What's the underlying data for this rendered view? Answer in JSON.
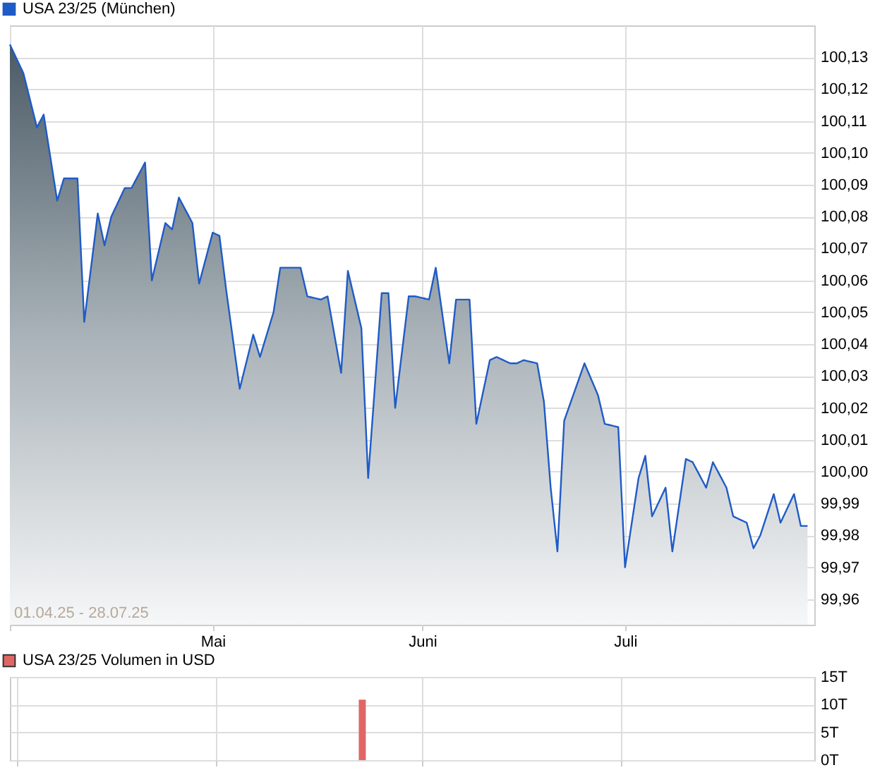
{
  "chart_data": [
    {
      "type": "area",
      "legend": "top left",
      "grid": true,
      "marker": "none",
      "annotations": [
        "01.04.25 - 28.07.25"
      ],
      "x": [
        "--04-01",
        "--04-03",
        "--04-05",
        "--04-06",
        "--04-08",
        "--04-09",
        "--04-11",
        "--04-12",
        "--04-14",
        "--04-15",
        "--04-16",
        "--04-18",
        "--04-19",
        "--04-21",
        "--04-22",
        "--04-24",
        "--04-25",
        "--04-26",
        "--04-28",
        "--04-29",
        "--05-01",
        "--05-02",
        "--05-03",
        "--05-05",
        "--05-07",
        "--05-08",
        "--05-10",
        "--05-11",
        "--05-12",
        "--05-14",
        "--05-15",
        "--05-17",
        "--05-18",
        "--05-20",
        "--05-21",
        "--05-23",
        "--05-24",
        "--05-26",
        "--05-27",
        "--05-28",
        "--05-30",
        "--05-31",
        "--06-02",
        "--06-03",
        "--06-05",
        "--06-06",
        "--06-08",
        "--06-09",
        "--06-11",
        "--06-12",
        "--06-14",
        "--06-15",
        "--06-16",
        "--06-18",
        "--06-19",
        "--06-20",
        "--06-21",
        "--06-22",
        "--06-25",
        "--06-27",
        "--06-28",
        "--06-30",
        "--07-01",
        "--07-03",
        "--07-04",
        "--07-05",
        "--07-07",
        "--07-08",
        "--07-10",
        "--07-11",
        "--07-13",
        "--07-14",
        "--07-16",
        "--07-17",
        "--07-19",
        "--07-20",
        "--07-21",
        "--07-23",
        "--07-24",
        "--07-26",
        "--07-27",
        "--07-28"
      ],
      "series": [
        {
          "name": "USA 23/25 (München)",
          "color": "#1f5bc6",
          "values": [
            100.134,
            100.125,
            100.108,
            100.112,
            100.085,
            100.092,
            100.092,
            100.047,
            100.081,
            100.071,
            100.08,
            100.089,
            100.089,
            100.097,
            100.06,
            100.078,
            100.076,
            100.086,
            100.078,
            100.059,
            100.075,
            100.074,
            100.057,
            100.026,
            100.043,
            100.036,
            100.05,
            100.064,
            100.064,
            100.064,
            100.055,
            100.054,
            100.055,
            100.031,
            100.063,
            100.045,
            99.998,
            100.056,
            100.056,
            100.02,
            100.055,
            100.055,
            100.054,
            100.064,
            100.034,
            100.054,
            100.054,
            100.015,
            100.035,
            100.036,
            100.034,
            100.034,
            100.035,
            100.034,
            100.022,
            99.995,
            99.975,
            100.016,
            100.034,
            100.024,
            100.015,
            100.014,
            99.97,
            99.998,
            100.005,
            99.986,
            99.995,
            99.975,
            100.004,
            100.003,
            99.995,
            100.003,
            99.995,
            99.986,
            99.984,
            99.976,
            99.98,
            99.993,
            99.984,
            99.993,
            99.983,
            99.983
          ]
        }
      ],
      "xlim": [
        "--04-01",
        "--07-29"
      ],
      "xticks": [
        {
          "value": "--04-01",
          "label": null
        },
        {
          "value": "--05-01",
          "label": "Mai"
        },
        {
          "value": "--06-01",
          "label": "Juni"
        },
        {
          "value": "--07-01",
          "label": "Juli"
        }
      ],
      "ylim": [
        99.952,
        100.14
      ],
      "yticks": [
        {
          "value": 99.96,
          "label": "99,96"
        },
        {
          "value": 99.97,
          "label": "99,97"
        },
        {
          "value": 99.98,
          "label": "99,98"
        },
        {
          "value": 99.99,
          "label": "99,99"
        },
        {
          "value": 100.0,
          "label": "100,00"
        },
        {
          "value": 100.01,
          "label": "100,01"
        },
        {
          "value": 100.02,
          "label": "100,02"
        },
        {
          "value": 100.03,
          "label": "100,03"
        },
        {
          "value": 100.04,
          "label": "100,04"
        },
        {
          "value": 100.05,
          "label": "100,05"
        },
        {
          "value": 100.06,
          "label": "100,06"
        },
        {
          "value": 100.07,
          "label": "100,07"
        },
        {
          "value": 100.08,
          "label": "100,08"
        },
        {
          "value": 100.09,
          "label": "100,09"
        },
        {
          "value": 100.1,
          "label": "100,10"
        },
        {
          "value": 100.11,
          "label": "100,11"
        },
        {
          "value": 100.12,
          "label": "100,12"
        },
        {
          "value": 100.13,
          "label": "100,13"
        }
      ]
    },
    {
      "type": "bar",
      "legend": "top left",
      "grid": true,
      "tick_labels": "y",
      "x": [
        "--05-23"
      ],
      "series": [
        {
          "name": "USA 23/25 Volumen in USD",
          "color": "#e06666",
          "values": [
            10.9
          ]
        }
      ],
      "xlim": [
        "--04-01",
        "--07-29"
      ],
      "xticks": [
        {
          "value": "--04-01",
          "label": null
        },
        {
          "value": "--05-01",
          "label": null
        },
        {
          "value": "--06-01",
          "label": null
        },
        {
          "value": "--07-01",
          "label": null
        }
      ],
      "ylim": [
        0,
        15
      ],
      "yticks": [
        {
          "value": 0,
          "label": "0T"
        },
        {
          "value": 5,
          "label": "5T"
        },
        {
          "value": 10,
          "label": "10T"
        },
        {
          "value": 15,
          "label": "15T"
        }
      ]
    }
  ]
}
